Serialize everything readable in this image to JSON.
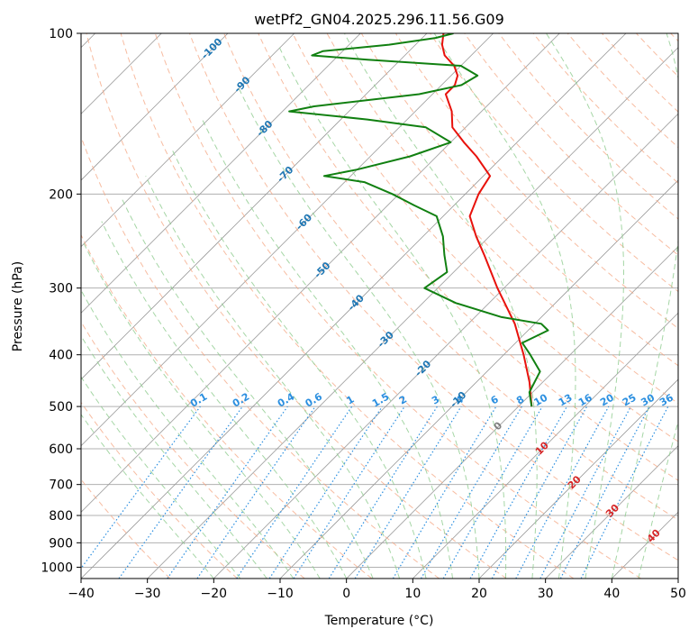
{
  "chart_data": {
    "type": "line",
    "title": "wetPf2_GN04.2025.296.11.56.G09",
    "xlabel": "Temperature (°C)",
    "ylabel": "Pressure (hPa)",
    "xlim": [
      -40,
      50
    ],
    "ylim": [
      1050,
      100
    ],
    "y_scale": "log",
    "skew": 45,
    "x_ticks": [
      -40,
      -30,
      -20,
      -10,
      0,
      10,
      20,
      30,
      40,
      50
    ],
    "x_tick_labels": [
      "−40",
      "−30",
      "−20",
      "−10",
      "0",
      "10",
      "20",
      "30",
      "40",
      "50"
    ],
    "y_ticks": [
      1000,
      900,
      800,
      700,
      600,
      500,
      400,
      300,
      200,
      100
    ],
    "y_tick_labels": [
      "1000",
      "900",
      "800",
      "700",
      "600",
      "500",
      "400",
      "300",
      "200",
      "100"
    ],
    "grid": true,
    "colors": {
      "temperature": "#e8120c",
      "dewpoint": "#118011",
      "dry_adiabat": "#f4a582",
      "moist_adiabat": "#8fcc8f",
      "mixing_ratio": "#2b8fe0",
      "isotherm_label": "#1f77b4",
      "isotherm": "#9a9a9a"
    },
    "series": [
      {
        "kind": "temperature",
        "color": "#e8120c",
        "points": [
          {
            "p": 500,
            "t": 2
          },
          {
            "p": 450,
            "t": -2
          },
          {
            "p": 400,
            "t": -7
          },
          {
            "p": 350,
            "t": -13
          },
          {
            "p": 300,
            "t": -21
          },
          {
            "p": 260,
            "t": -28
          },
          {
            "p": 240,
            "t": -32
          },
          {
            "p": 220,
            "t": -36
          },
          {
            "p": 200,
            "t": -38
          },
          {
            "p": 185,
            "t": -39
          },
          {
            "p": 170,
            "t": -44
          },
          {
            "p": 160,
            "t": -48
          },
          {
            "p": 150,
            "t": -52
          },
          {
            "p": 140,
            "t": -54.5
          },
          {
            "p": 130,
            "t": -58
          },
          {
            "p": 125,
            "t": -58
          },
          {
            "p": 120,
            "t": -59
          },
          {
            "p": 115,
            "t": -61
          },
          {
            "p": 110,
            "t": -64
          },
          {
            "p": 105,
            "t": -66
          },
          {
            "p": 100,
            "t": -67.5
          }
        ]
      },
      {
        "kind": "dewpoint",
        "color": "#118011",
        "points": [
          {
            "p": 500,
            "t": 2
          },
          {
            "p": 470,
            "t": -0.5
          },
          {
            "p": 430,
            "t": -2
          },
          {
            "p": 400,
            "t": -6
          },
          {
            "p": 380,
            "t": -9
          },
          {
            "p": 360,
            "t": -7
          },
          {
            "p": 350,
            "t": -9
          },
          {
            "p": 340,
            "t": -16
          },
          {
            "p": 320,
            "t": -25
          },
          {
            "p": 300,
            "t": -32
          },
          {
            "p": 280,
            "t": -31
          },
          {
            "p": 260,
            "t": -34
          },
          {
            "p": 240,
            "t": -37
          },
          {
            "p": 220,
            "t": -41
          },
          {
            "p": 210,
            "t": -46
          },
          {
            "p": 200,
            "t": -51
          },
          {
            "p": 190,
            "t": -57
          },
          {
            "p": 185,
            "t": -64
          },
          {
            "p": 180,
            "t": -60
          },
          {
            "p": 170,
            "t": -54
          },
          {
            "p": 160,
            "t": -50
          },
          {
            "p": 150,
            "t": -56
          },
          {
            "p": 145,
            "t": -66
          },
          {
            "p": 140,
            "t": -79
          },
          {
            "p": 137,
            "t": -76
          },
          {
            "p": 130,
            "t": -62
          },
          {
            "p": 125,
            "t": -57
          },
          {
            "p": 120,
            "t": -56
          },
          {
            "p": 115,
            "t": -60
          },
          {
            "p": 112,
            "t": -75
          },
          {
            "p": 110,
            "t": -84
          },
          {
            "p": 108,
            "t": -83
          },
          {
            "p": 105,
            "t": -74
          },
          {
            "p": 102,
            "t": -68
          },
          {
            "p": 100,
            "t": -66
          }
        ]
      }
    ],
    "isotherm_labels": [
      {
        "text": "-100",
        "t": -100,
        "p": 107
      },
      {
        "text": "-90",
        "t": -90,
        "p": 125
      },
      {
        "text": "-80",
        "t": -80,
        "p": 151
      },
      {
        "text": "-70",
        "t": -70,
        "p": 184
      },
      {
        "text": "-60",
        "t": -60,
        "p": 226
      },
      {
        "text": "-50",
        "t": -50,
        "p": 278
      },
      {
        "text": "-40",
        "t": -40,
        "p": 320
      },
      {
        "text": "-30",
        "t": -30,
        "p": 375
      },
      {
        "text": "-20",
        "t": -20,
        "p": 425
      },
      {
        "text": "-10",
        "t": -10,
        "p": 486
      },
      {
        "text": "0",
        "t": 0,
        "p": 545
      },
      {
        "text": "10",
        "t": 10,
        "p": 600
      },
      {
        "text": "20",
        "t": 20,
        "p": 695
      },
      {
        "text": "30",
        "t": 30,
        "p": 785
      },
      {
        "text": "40",
        "t": 40,
        "p": 875
      }
    ],
    "mixing_ratio_labels": [
      "0.1",
      "0.2",
      "0.4",
      "0.6",
      "1",
      "1.5",
      "2",
      "3",
      "4",
      "6",
      "8",
      "10",
      "13",
      "16",
      "20",
      "25",
      "30",
      "36"
    ]
  }
}
